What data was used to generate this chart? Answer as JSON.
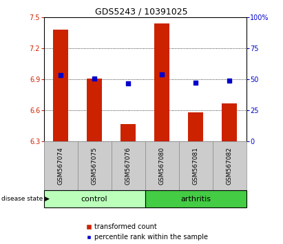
{
  "title": "GDS5243 / 10391025",
  "samples": [
    "GSM567074",
    "GSM567075",
    "GSM567076",
    "GSM567080",
    "GSM567081",
    "GSM567082"
  ],
  "bar_tops": [
    7.38,
    6.91,
    6.47,
    7.44,
    6.58,
    6.67
  ],
  "bar_bottom": 6.3,
  "percentile_values": [
    6.94,
    6.91,
    6.86,
    6.95,
    6.87,
    6.89
  ],
  "ylim_left": [
    6.3,
    7.5
  ],
  "ylim_right": [
    0,
    100
  ],
  "yticks_left": [
    6.3,
    6.6,
    6.9,
    7.2,
    7.5
  ],
  "yticks_right": [
    0,
    25,
    50,
    75,
    100
  ],
  "bar_color": "#cc2200",
  "square_color": "#0000cc",
  "control_color": "#bbffbb",
  "arthritis_color": "#44cc44",
  "sample_label_bg": "#cccccc",
  "legend_bar_label": "transformed count",
  "legend_sq_label": "percentile rank within the sample",
  "disease_state_label": "disease state",
  "control_label": "control",
  "arthritis_label": "arthritis",
  "title_fontsize": 9,
  "axis_fontsize": 7,
  "legend_fontsize": 7,
  "group_fontsize": 8,
  "sample_fontsize": 6.5
}
